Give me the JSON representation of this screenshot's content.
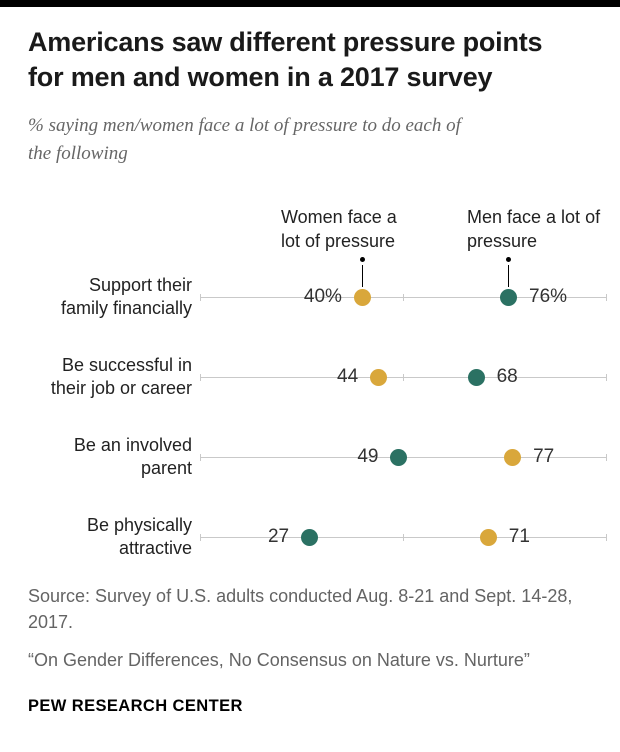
{
  "page": {
    "background": "#ffffff",
    "top_bar_color": "#000000"
  },
  "header": {
    "title": "Americans saw different pressure points\nfor men and women in a 2017 survey",
    "subtitle": "% saying men/women face a lot of pressure to do each of\nthe following"
  },
  "chart_data": {
    "type": "scatter",
    "variant": "dot-plot",
    "xlim": [
      0,
      100
    ],
    "x_ticks": [
      0,
      50,
      100
    ],
    "unit": "%",
    "grid": "per-row horizontal axis line with ticks at 0, 50, 100",
    "legend_position": "annotations above first row",
    "series_meta": {
      "women": {
        "name": "Women",
        "color": "#d9a73b",
        "annotation": "Women face a lot of pressure"
      },
      "men": {
        "name": "Men",
        "color": "#2b7163",
        "annotation": "Men face a lot of pressure"
      }
    },
    "annotated_row": 0,
    "rows": [
      {
        "category": "Support their family financially",
        "points": [
          {
            "series": "women",
            "value": 40,
            "label": "40%",
            "label_side": "left"
          },
          {
            "series": "men",
            "value": 76,
            "label": "76%",
            "label_side": "right"
          }
        ]
      },
      {
        "category": "Be successful in their job or career",
        "points": [
          {
            "series": "women",
            "value": 44,
            "label": "44",
            "label_side": "left"
          },
          {
            "series": "men",
            "value": 68,
            "label": "68",
            "label_side": "right"
          }
        ]
      },
      {
        "category": "Be an involved parent",
        "points": [
          {
            "series": "men",
            "value": 49,
            "label": "49",
            "label_side": "left"
          },
          {
            "series": "women",
            "value": 77,
            "label": "77",
            "label_side": "right"
          }
        ]
      },
      {
        "category": "Be physically attractive",
        "points": [
          {
            "series": "men",
            "value": 27,
            "label": "27",
            "label_side": "left"
          },
          {
            "series": "women",
            "value": 71,
            "label": "71",
            "label_side": "right"
          }
        ]
      }
    ]
  },
  "footer": {
    "source": "Source: Survey of U.S. adults conducted Aug. 8-21 and Sept. 14-28,\n2017.",
    "report_title": "“On Gender Differences, No Consensus on Nature vs. Nurture”",
    "brand": "PEW RESEARCH CENTER"
  }
}
